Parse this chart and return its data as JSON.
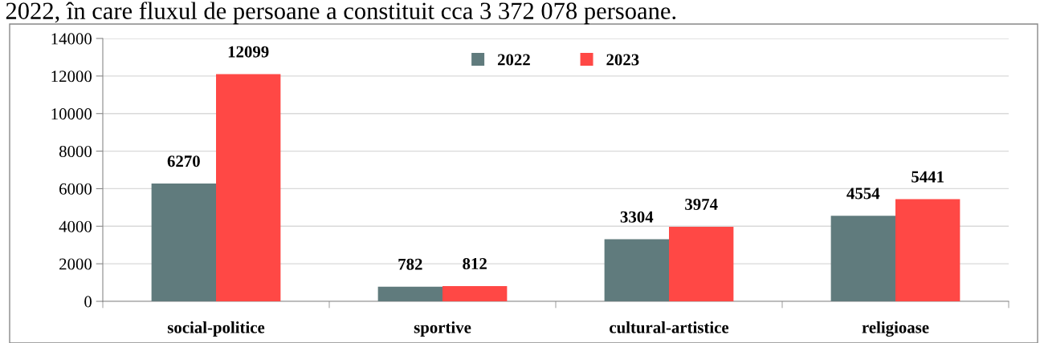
{
  "chart_data": {
    "type": "bar",
    "annotations": [
      "2022, în care fluxul de persoane a constituit cca 3 372 078 persoane."
    ],
    "categories": [
      "social-politice",
      "sportive",
      "cultural-artistice",
      "religioase"
    ],
    "series": [
      {
        "name": "2022",
        "color": "#607b7d",
        "values": [
          6270,
          782,
          3304,
          4554
        ]
      },
      {
        "name": "2023",
        "color": "#ff4845",
        "values": [
          12099,
          812,
          3974,
          5441
        ]
      }
    ],
    "ylim": [
      0,
      14000
    ],
    "yticks": [
      0,
      2000,
      4000,
      6000,
      8000,
      10000,
      12000,
      14000
    ],
    "grid": "y",
    "legend": "top",
    "data_labels": true
  }
}
